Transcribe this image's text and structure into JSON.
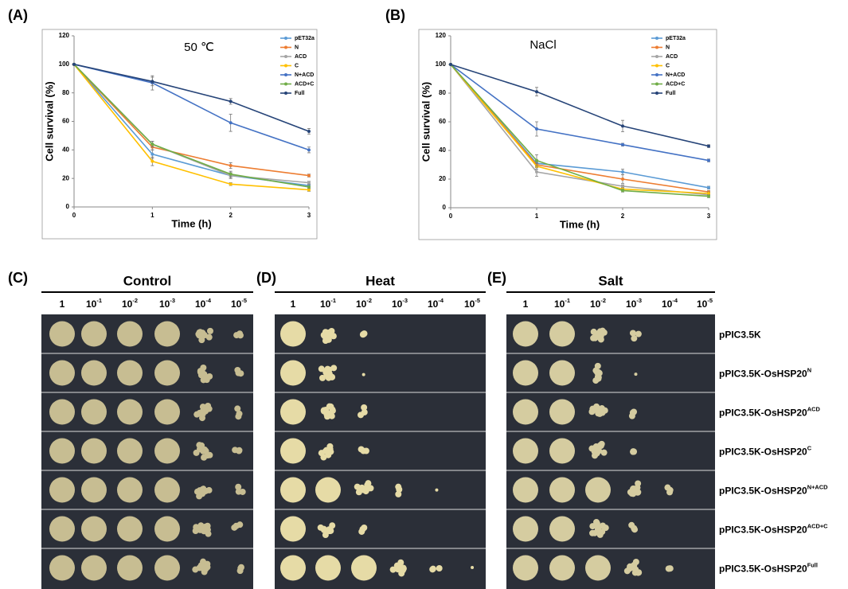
{
  "chart_data": [
    {
      "type": "line",
      "panel_label": "(A)",
      "annotation": "50 ℃",
      "x_label": "Time (h)",
      "y_label": "Cell survival (%)",
      "x": [
        0,
        1,
        2,
        3
      ],
      "xlim": [
        0,
        3
      ],
      "xticks": [
        0,
        1,
        2,
        3
      ],
      "ylim": [
        0,
        120
      ],
      "yticks": [
        0,
        20,
        40,
        60,
        80,
        100,
        120
      ],
      "legend": "upper right",
      "series": [
        {
          "name": "pET32a",
          "color": "#5b9bd5",
          "values": [
            100,
            37,
            22,
            15
          ],
          "errors": [
            0,
            3,
            2,
            1
          ]
        },
        {
          "name": "N",
          "color": "#ed7d31",
          "values": [
            100,
            42,
            29,
            22
          ],
          "errors": [
            0,
            2,
            2,
            1
          ]
        },
        {
          "name": "ACD",
          "color": "#a5a5a5",
          "values": [
            100,
            44,
            22,
            17
          ],
          "errors": [
            0,
            2,
            2,
            1
          ]
        },
        {
          "name": "C",
          "color": "#ffc000",
          "values": [
            100,
            32,
            16,
            12
          ],
          "errors": [
            0,
            3,
            1,
            1
          ]
        },
        {
          "name": "N+ACD",
          "color": "#4472c4",
          "values": [
            100,
            87,
            59,
            40
          ],
          "errors": [
            0,
            5,
            6,
            2
          ]
        },
        {
          "name": "ACD+C",
          "color": "#70ad47",
          "values": [
            100,
            44,
            23,
            14
          ],
          "errors": [
            0,
            2,
            2,
            1
          ]
        },
        {
          "name": "Full",
          "color": "#264478",
          "values": [
            100,
            88,
            74,
            53
          ],
          "errors": [
            0,
            3,
            2,
            2
          ]
        }
      ]
    },
    {
      "type": "line",
      "panel_label": "(B)",
      "annotation": "NaCl",
      "x_label": "Time (h)",
      "y_label": "Cell survival (%)",
      "x": [
        0,
        1,
        2,
        3
      ],
      "xlim": [
        0,
        3
      ],
      "xticks": [
        0,
        1,
        2,
        3
      ],
      "ylim": [
        0,
        120
      ],
      "yticks": [
        0,
        20,
        40,
        60,
        80,
        100,
        120
      ],
      "legend": "upper right",
      "series": [
        {
          "name": "pET32a",
          "color": "#5b9bd5",
          "values": [
            100,
            31,
            25,
            14
          ],
          "errors": [
            0,
            2,
            2,
            1
          ]
        },
        {
          "name": "N",
          "color": "#ed7d31",
          "values": [
            100,
            30,
            20,
            11
          ],
          "errors": [
            0,
            2,
            3,
            1
          ]
        },
        {
          "name": "ACD",
          "color": "#a5a5a5",
          "values": [
            100,
            25,
            15,
            9
          ],
          "errors": [
            0,
            3,
            1,
            1
          ]
        },
        {
          "name": "C",
          "color": "#ffc000",
          "values": [
            100,
            29,
            13,
            10
          ],
          "errors": [
            0,
            2,
            1,
            1
          ]
        },
        {
          "name": "N+ACD",
          "color": "#4472c4",
          "values": [
            100,
            55,
            44,
            33
          ],
          "errors": [
            0,
            5,
            1,
            1
          ]
        },
        {
          "name": "ACD+C",
          "color": "#70ad47",
          "values": [
            100,
            33,
            12,
            8
          ],
          "errors": [
            0,
            4,
            1,
            1
          ]
        },
        {
          "name": "Full",
          "color": "#264478",
          "values": [
            100,
            81,
            57,
            43
          ],
          "errors": [
            0,
            3,
            4,
            1
          ]
        }
      ]
    }
  ],
  "plates": [
    {
      "label": "(C)",
      "title": "Control",
      "dilutions": [
        {
          "text": "1"
        },
        {
          "text": "10",
          "sup": "-1"
        },
        {
          "text": "10",
          "sup": "-2"
        },
        {
          "text": "10",
          "sup": "-3"
        },
        {
          "text": "10",
          "sup": "-4"
        },
        {
          "text": "10",
          "sup": "-5"
        }
      ]
    },
    {
      "label": "(D)",
      "title": "Heat",
      "dilutions": [
        {
          "text": "1"
        },
        {
          "text": "10",
          "sup": "-1"
        },
        {
          "text": "10",
          "sup": "-2"
        },
        {
          "text": "10",
          "sup": "-3"
        },
        {
          "text": "10",
          "sup": "-4"
        },
        {
          "text": "10",
          "sup": "-5"
        }
      ]
    },
    {
      "label": "(E)",
      "title": "Salt",
      "dilutions": [
        {
          "text": "1"
        },
        {
          "text": "10",
          "sup": "-1"
        },
        {
          "text": "10",
          "sup": "-2"
        },
        {
          "text": "10",
          "sup": "-3"
        },
        {
          "text": "10",
          "sup": "-4"
        },
        {
          "text": "10",
          "sup": "-5"
        }
      ]
    }
  ],
  "strains": [
    {
      "text": "pPIC3.5K"
    },
    {
      "text": "pPIC3.5K-OsHSP20",
      "sup": "N"
    },
    {
      "text": "pPIC3.5K-OsHSP20",
      "sup": "ACD"
    },
    {
      "text": "pPIC3.5K-OsHSP20",
      "sup": "C"
    },
    {
      "text": "pPIC3.5K-OsHSP20",
      "sup": "N+ACD"
    },
    {
      "text": "pPIC3.5K-OsHSP20",
      "sup": "ACD+C"
    },
    {
      "text": "pPIC3.5K-OsHSP20",
      "sup": "Full"
    }
  ]
}
